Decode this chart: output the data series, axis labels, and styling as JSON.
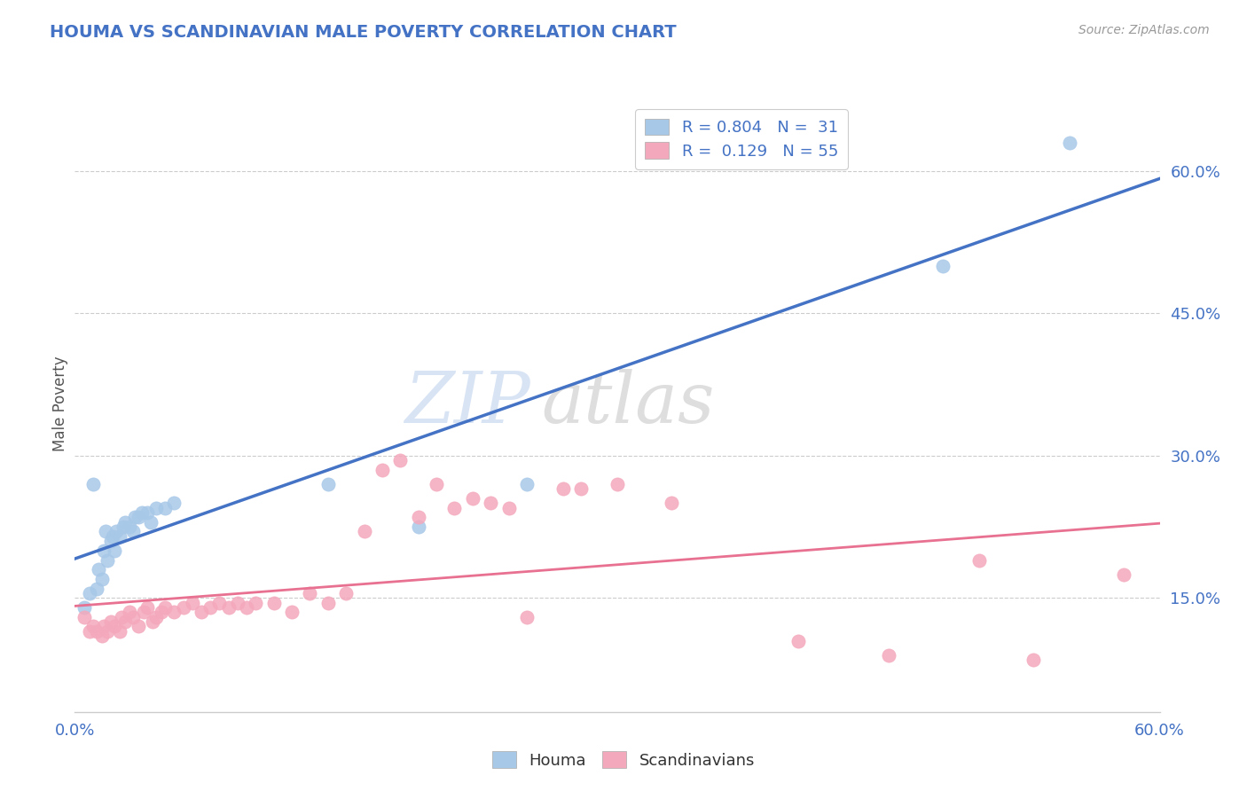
{
  "title": "HOUMA VS SCANDINAVIAN MALE POVERTY CORRELATION CHART",
  "source": "Source: ZipAtlas.com",
  "ylabel": "Male Poverty",
  "ytick_vals": [
    0.15,
    0.3,
    0.45,
    0.6
  ],
  "ytick_labels": [
    "15.0%",
    "30.0%",
    "45.0%",
    "60.0%"
  ],
  "xlim": [
    0.0,
    0.6
  ],
  "ylim": [
    0.03,
    0.68
  ],
  "legend_line1": "R = 0.804   N =  31",
  "legend_line2": "R =  0.129   N = 55",
  "houma_color": "#A8C8E8",
  "scandinavian_color": "#F4A8BC",
  "houma_line_color": "#4472C4",
  "scandinavian_line_color": "#E87090",
  "title_color": "#4472C4",
  "tick_color": "#4472C4",
  "background_color": "#FFFFFF",
  "watermark_zip": "ZIP",
  "watermark_atlas": "atlas",
  "houma_x": [
    0.005,
    0.008,
    0.01,
    0.012,
    0.013,
    0.015,
    0.016,
    0.017,
    0.018,
    0.02,
    0.021,
    0.022,
    0.023,
    0.025,
    0.027,
    0.028,
    0.03,
    0.032,
    0.033,
    0.035,
    0.037,
    0.04,
    0.042,
    0.045,
    0.05,
    0.055,
    0.14,
    0.19,
    0.25,
    0.48,
    0.55
  ],
  "houma_y": [
    0.14,
    0.155,
    0.27,
    0.16,
    0.18,
    0.17,
    0.2,
    0.22,
    0.19,
    0.21,
    0.215,
    0.2,
    0.22,
    0.215,
    0.225,
    0.23,
    0.225,
    0.22,
    0.235,
    0.235,
    0.24,
    0.24,
    0.23,
    0.245,
    0.245,
    0.25,
    0.27,
    0.225,
    0.27,
    0.5,
    0.63
  ],
  "scand_x": [
    0.005,
    0.008,
    0.01,
    0.012,
    0.015,
    0.016,
    0.018,
    0.02,
    0.022,
    0.025,
    0.026,
    0.028,
    0.03,
    0.032,
    0.035,
    0.038,
    0.04,
    0.043,
    0.045,
    0.048,
    0.05,
    0.055,
    0.06,
    0.065,
    0.07,
    0.075,
    0.08,
    0.085,
    0.09,
    0.095,
    0.1,
    0.11,
    0.12,
    0.13,
    0.14,
    0.15,
    0.16,
    0.17,
    0.18,
    0.19,
    0.2,
    0.21,
    0.22,
    0.23,
    0.24,
    0.25,
    0.27,
    0.28,
    0.3,
    0.33,
    0.4,
    0.45,
    0.5,
    0.53,
    0.58
  ],
  "scand_y": [
    0.13,
    0.115,
    0.12,
    0.115,
    0.11,
    0.12,
    0.115,
    0.125,
    0.12,
    0.115,
    0.13,
    0.125,
    0.135,
    0.13,
    0.12,
    0.135,
    0.14,
    0.125,
    0.13,
    0.135,
    0.14,
    0.135,
    0.14,
    0.145,
    0.135,
    0.14,
    0.145,
    0.14,
    0.145,
    0.14,
    0.145,
    0.145,
    0.135,
    0.155,
    0.145,
    0.155,
    0.22,
    0.285,
    0.295,
    0.235,
    0.27,
    0.245,
    0.255,
    0.25,
    0.245,
    0.13,
    0.265,
    0.265,
    0.27,
    0.25,
    0.105,
    0.09,
    0.19,
    0.085,
    0.175
  ]
}
